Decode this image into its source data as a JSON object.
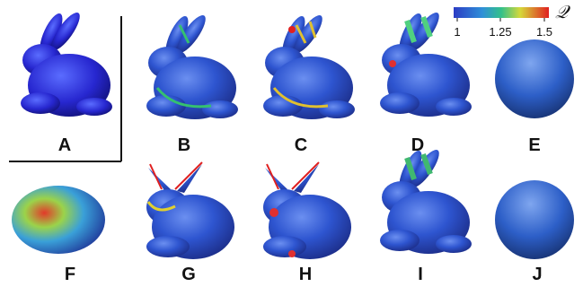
{
  "colorbar": {
    "symbol": "𝒬",
    "ticks": [
      "1",
      "1.25",
      "1.5"
    ]
  },
  "panels": [
    {
      "label": "A"
    },
    {
      "label": "B"
    },
    {
      "label": "C"
    },
    {
      "label": "D"
    },
    {
      "label": "E"
    },
    {
      "label": "F"
    },
    {
      "label": "G"
    },
    {
      "label": "H"
    },
    {
      "label": "I"
    },
    {
      "label": "J"
    }
  ]
}
